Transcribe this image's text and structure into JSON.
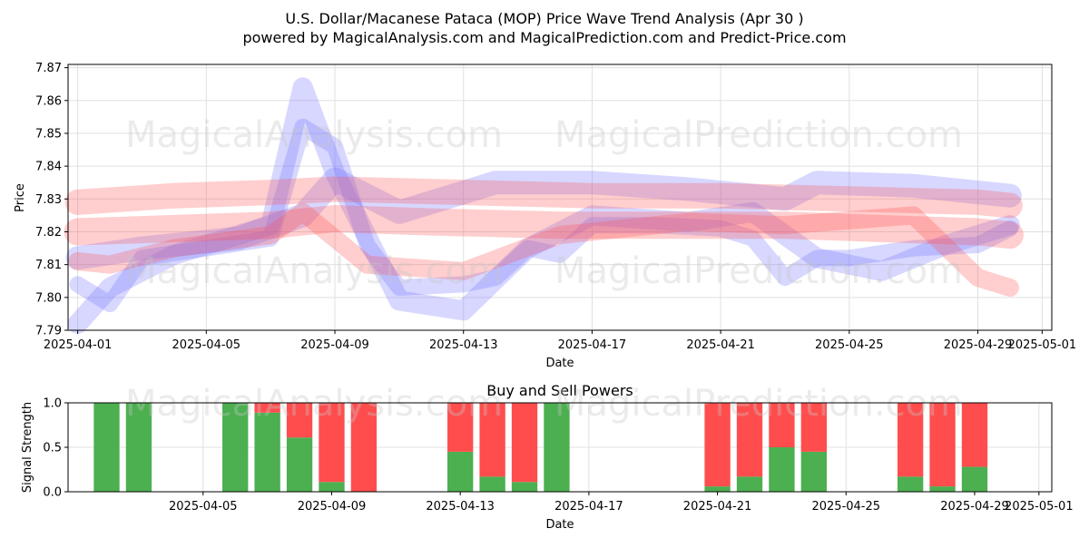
{
  "title_line1": "U.S. Dollar/Macanese Pataca (MOP) Price Wave Trend Analysis (Apr 30 )",
  "title_line2": "powered by MagicalAnalysis.com and MagicalPrediction.com and Predict-Price.com",
  "watermarks": [
    "MagicalAnalysis.com",
    "MagicalPrediction.com"
  ],
  "colors": {
    "buy": "#4caf50",
    "sell": "#ff4d4d",
    "wave_blue": "#6e6eff",
    "wave_red": "#ff5050",
    "wave_purple": "#b03070"
  },
  "chart_data": [
    {
      "type": "area",
      "title": "",
      "xlabel": "Date",
      "ylabel": "Price",
      "ylim": [
        7.79,
        7.871
      ],
      "xlim": [
        "2025-03-31",
        "2025-05-01"
      ],
      "yticks": [
        "7.79",
        "7.80",
        "7.81",
        "7.82",
        "7.83",
        "7.84",
        "7.85",
        "7.86",
        "7.87"
      ],
      "xticks": [
        "2025-04-01",
        "2025-04-05",
        "2025-04-09",
        "2025-04-13",
        "2025-04-17",
        "2025-04-21",
        "2025-04-25",
        "2025-04-29",
        "2025-05-01"
      ],
      "grid": true,
      "series": [
        {
          "color": "blue",
          "x": [
            "2025-04-01",
            "2025-04-02",
            "2025-04-03",
            "2025-04-05",
            "2025-04-07",
            "2025-04-08",
            "2025-04-09",
            "2025-04-10",
            "2025-04-11",
            "2025-04-13",
            "2025-04-14",
            "2025-04-15",
            "2025-04-16",
            "2025-04-17",
            "2025-04-19",
            "2025-04-21",
            "2025-04-22",
            "2025-04-23",
            "2025-04-24",
            "2025-04-25",
            "2025-04-27",
            "2025-04-29",
            "2025-04-30"
          ],
          "values": [
            7.804,
            7.798,
            7.812,
            7.815,
            7.818,
            7.852,
            7.846,
            7.816,
            7.803,
            7.804,
            7.806,
            7.815,
            7.813,
            7.822,
            7.822,
            7.821,
            7.818,
            7.806,
            7.812,
            7.812,
            7.815,
            7.816,
            7.821
          ]
        },
        {
          "color": "blue",
          "x": [
            "2025-04-01",
            "2025-04-02",
            "2025-04-04",
            "2025-04-07",
            "2025-04-08",
            "2025-04-09",
            "2025-04-11",
            "2025-04-13",
            "2025-04-15",
            "2025-04-17",
            "2025-04-20",
            "2025-04-22",
            "2025-04-24",
            "2025-04-26",
            "2025-04-28",
            "2025-04-30"
          ],
          "values": [
            7.792,
            7.803,
            7.813,
            7.822,
            7.864,
            7.838,
            7.799,
            7.796,
            7.815,
            7.825,
            7.823,
            7.826,
            7.812,
            7.808,
            7.816,
            7.822
          ]
        },
        {
          "color": "blue",
          "x": [
            "2025-04-01",
            "2025-04-03",
            "2025-04-06",
            "2025-04-08",
            "2025-04-09",
            "2025-04-11",
            "2025-04-14",
            "2025-04-17",
            "2025-04-20",
            "2025-04-23",
            "2025-04-24",
            "2025-04-27",
            "2025-04-30"
          ],
          "values": [
            7.812,
            7.815,
            7.818,
            7.825,
            7.836,
            7.826,
            7.835,
            7.835,
            7.833,
            7.83,
            7.835,
            7.834,
            7.831
          ]
        },
        {
          "color": "red",
          "x": [
            "2025-04-01",
            "2025-04-04",
            "2025-04-07",
            "2025-04-09",
            "2025-04-12",
            "2025-04-16",
            "2025-04-20",
            "2025-04-23",
            "2025-04-26",
            "2025-04-29",
            "2025-04-30"
          ],
          "values": [
            7.82,
            7.821,
            7.822,
            7.824,
            7.823,
            7.822,
            7.822,
            7.822,
            7.821,
            7.82,
            7.819
          ]
        },
        {
          "color": "red",
          "x": [
            "2025-04-01",
            "2025-04-02",
            "2025-04-04",
            "2025-04-07",
            "2025-04-08",
            "2025-04-10",
            "2025-04-13",
            "2025-04-16",
            "2025-04-20",
            "2025-04-23",
            "2025-04-27",
            "2025-04-29",
            "2025-04-30"
          ],
          "values": [
            7.811,
            7.81,
            7.815,
            7.819,
            7.826,
            7.81,
            7.808,
            7.819,
            7.823,
            7.822,
            7.825,
            7.806,
            7.803
          ]
        },
        {
          "color": "red",
          "x": [
            "2025-04-01",
            "2025-04-04",
            "2025-04-07",
            "2025-04-09",
            "2025-04-13",
            "2025-04-17",
            "2025-04-21",
            "2025-04-25",
            "2025-04-29",
            "2025-04-30"
          ],
          "values": [
            7.829,
            7.831,
            7.832,
            7.833,
            7.832,
            7.831,
            7.831,
            7.83,
            7.829,
            7.828
          ]
        }
      ]
    },
    {
      "type": "bar",
      "title": "Buy and Sell Powers",
      "xlabel": "Date",
      "ylabel": "Signal Strength",
      "ylim": [
        0,
        1.0
      ],
      "yticks": [
        "0.0",
        "0.5",
        "1.0"
      ],
      "xticks": [
        "2025-04-05",
        "2025-04-09",
        "2025-04-13",
        "2025-04-17",
        "2025-04-21",
        "2025-04-25",
        "2025-04-29",
        "2025-05-01"
      ],
      "grid": true,
      "dates": [
        "2025-04-02",
        "2025-04-03",
        "2025-04-06",
        "2025-04-07",
        "2025-04-08",
        "2025-04-09",
        "2025-04-10",
        "2025-04-13",
        "2025-04-14",
        "2025-04-15",
        "2025-04-16",
        "2025-04-21",
        "2025-04-22",
        "2025-04-23",
        "2025-04-24",
        "2025-04-27",
        "2025-04-28",
        "2025-04-29"
      ],
      "buy": [
        1.0,
        1.0,
        1.0,
        0.89,
        0.61,
        0.11,
        0.0,
        0.45,
        0.17,
        0.11,
        1.0,
        0.06,
        0.17,
        0.5,
        0.45,
        0.17,
        0.06,
        0.28
      ],
      "sell": [
        0.0,
        0.0,
        0.0,
        0.11,
        0.39,
        0.89,
        1.0,
        0.55,
        0.83,
        0.89,
        0.0,
        0.94,
        0.83,
        0.5,
        0.55,
        0.83,
        0.94,
        0.72
      ]
    }
  ]
}
